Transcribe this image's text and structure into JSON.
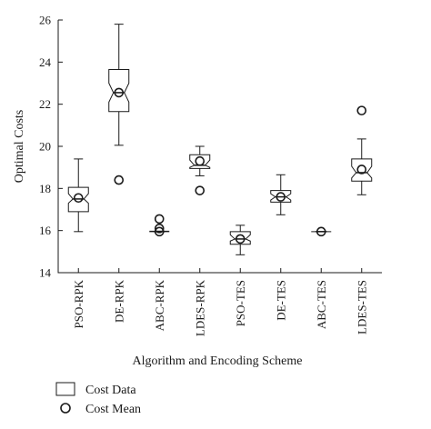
{
  "chart_data": {
    "type": "boxplot",
    "xlabel": "Algorithm and Encoding Scheme",
    "ylabel": "Optimal Costs",
    "ylim": [
      14,
      26
    ],
    "yticks": [
      14,
      16,
      18,
      20,
      22,
      24,
      26
    ],
    "categories": [
      "PSO-RPK",
      "DE-RPK",
      "ABC-RPK",
      "LDES-RPK",
      "PSO-TES",
      "DE-TES",
      "ABC-TES",
      "LDES-TES"
    ],
    "boxes": [
      {
        "min": 15.95,
        "q1": 16.9,
        "median": 17.5,
        "q3": 18.05,
        "max": 19.4,
        "notch_low": 17.3,
        "notch_high": 17.75
      },
      {
        "min": 20.05,
        "q1": 21.65,
        "median": 22.55,
        "q3": 23.65,
        "max": 25.8,
        "notch_low": 22.1,
        "notch_high": 23.0
      },
      {
        "min": 15.95,
        "q1": 15.95,
        "median": 15.95,
        "q3": 15.97,
        "max": 15.97,
        "notch_low": 15.95,
        "notch_high": 15.97
      },
      {
        "min": 18.6,
        "q1": 18.95,
        "median": 19.1,
        "q3": 19.6,
        "max": 20.0,
        "notch_low": 19.0,
        "notch_high": 19.35
      },
      {
        "min": 14.85,
        "q1": 15.35,
        "median": 15.6,
        "q3": 15.95,
        "max": 16.25,
        "notch_low": 15.5,
        "notch_high": 15.8
      },
      {
        "min": 16.75,
        "q1": 17.35,
        "median": 17.6,
        "q3": 17.9,
        "max": 18.65,
        "notch_low": 17.45,
        "notch_high": 17.75
      },
      {
        "min": 15.95,
        "q1": 15.95,
        "median": 15.95,
        "q3": 15.95,
        "max": 15.95,
        "notch_low": 15.95,
        "notch_high": 15.95
      },
      {
        "min": 17.7,
        "q1": 18.35,
        "median": 18.75,
        "q3": 19.4,
        "max": 20.35,
        "notch_low": 18.5,
        "notch_high": 19.05
      }
    ],
    "means": [
      17.55,
      22.55,
      15.95,
      19.3,
      15.6,
      17.6,
      15.95,
      18.9
    ],
    "outliers": [
      {
        "category": "DE-RPK",
        "value": 18.4
      },
      {
        "category": "ABC-RPK",
        "value": 16.55
      },
      {
        "category": "ABC-RPK",
        "value": 16.1
      },
      {
        "category": "LDES-RPK",
        "value": 17.9
      },
      {
        "category": "LDES-TES",
        "value": 21.7
      }
    ],
    "legend": [
      {
        "label": "Cost Data",
        "marker": "box"
      },
      {
        "label": "Cost Mean",
        "marker": "circle"
      }
    ],
    "legend_position": "bottom-left",
    "grid": false
  }
}
